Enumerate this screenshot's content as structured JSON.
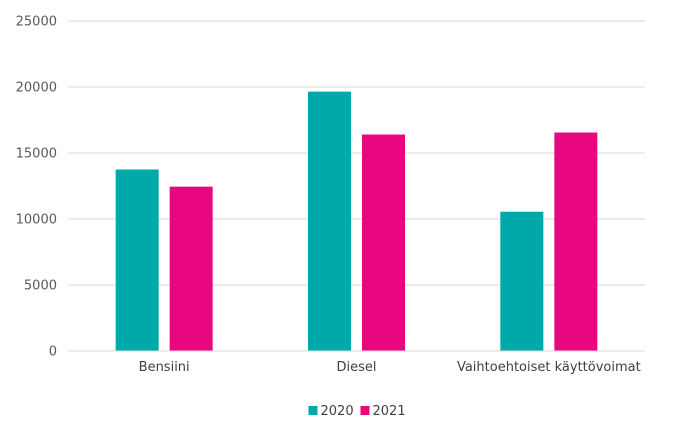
{
  "chart_data": {
    "type": "bar",
    "title": "",
    "xlabel": "",
    "ylabel": "",
    "categories": [
      "Bensiini",
      "Diesel",
      "Vaihtoehtoiset käyttövoimat"
    ],
    "series": [
      {
        "name": "2020",
        "color": "#00a9a9",
        "values": [
          13750,
          19650,
          10550
        ]
      },
      {
        "name": "2021",
        "color": "#e8077f",
        "values": [
          12450,
          16400,
          16550
        ]
      }
    ],
    "ylim": [
      0,
      25000
    ],
    "yticks": [
      0,
      5000,
      10000,
      15000,
      20000,
      25000
    ],
    "grid": true,
    "legend_position": "bottom"
  }
}
